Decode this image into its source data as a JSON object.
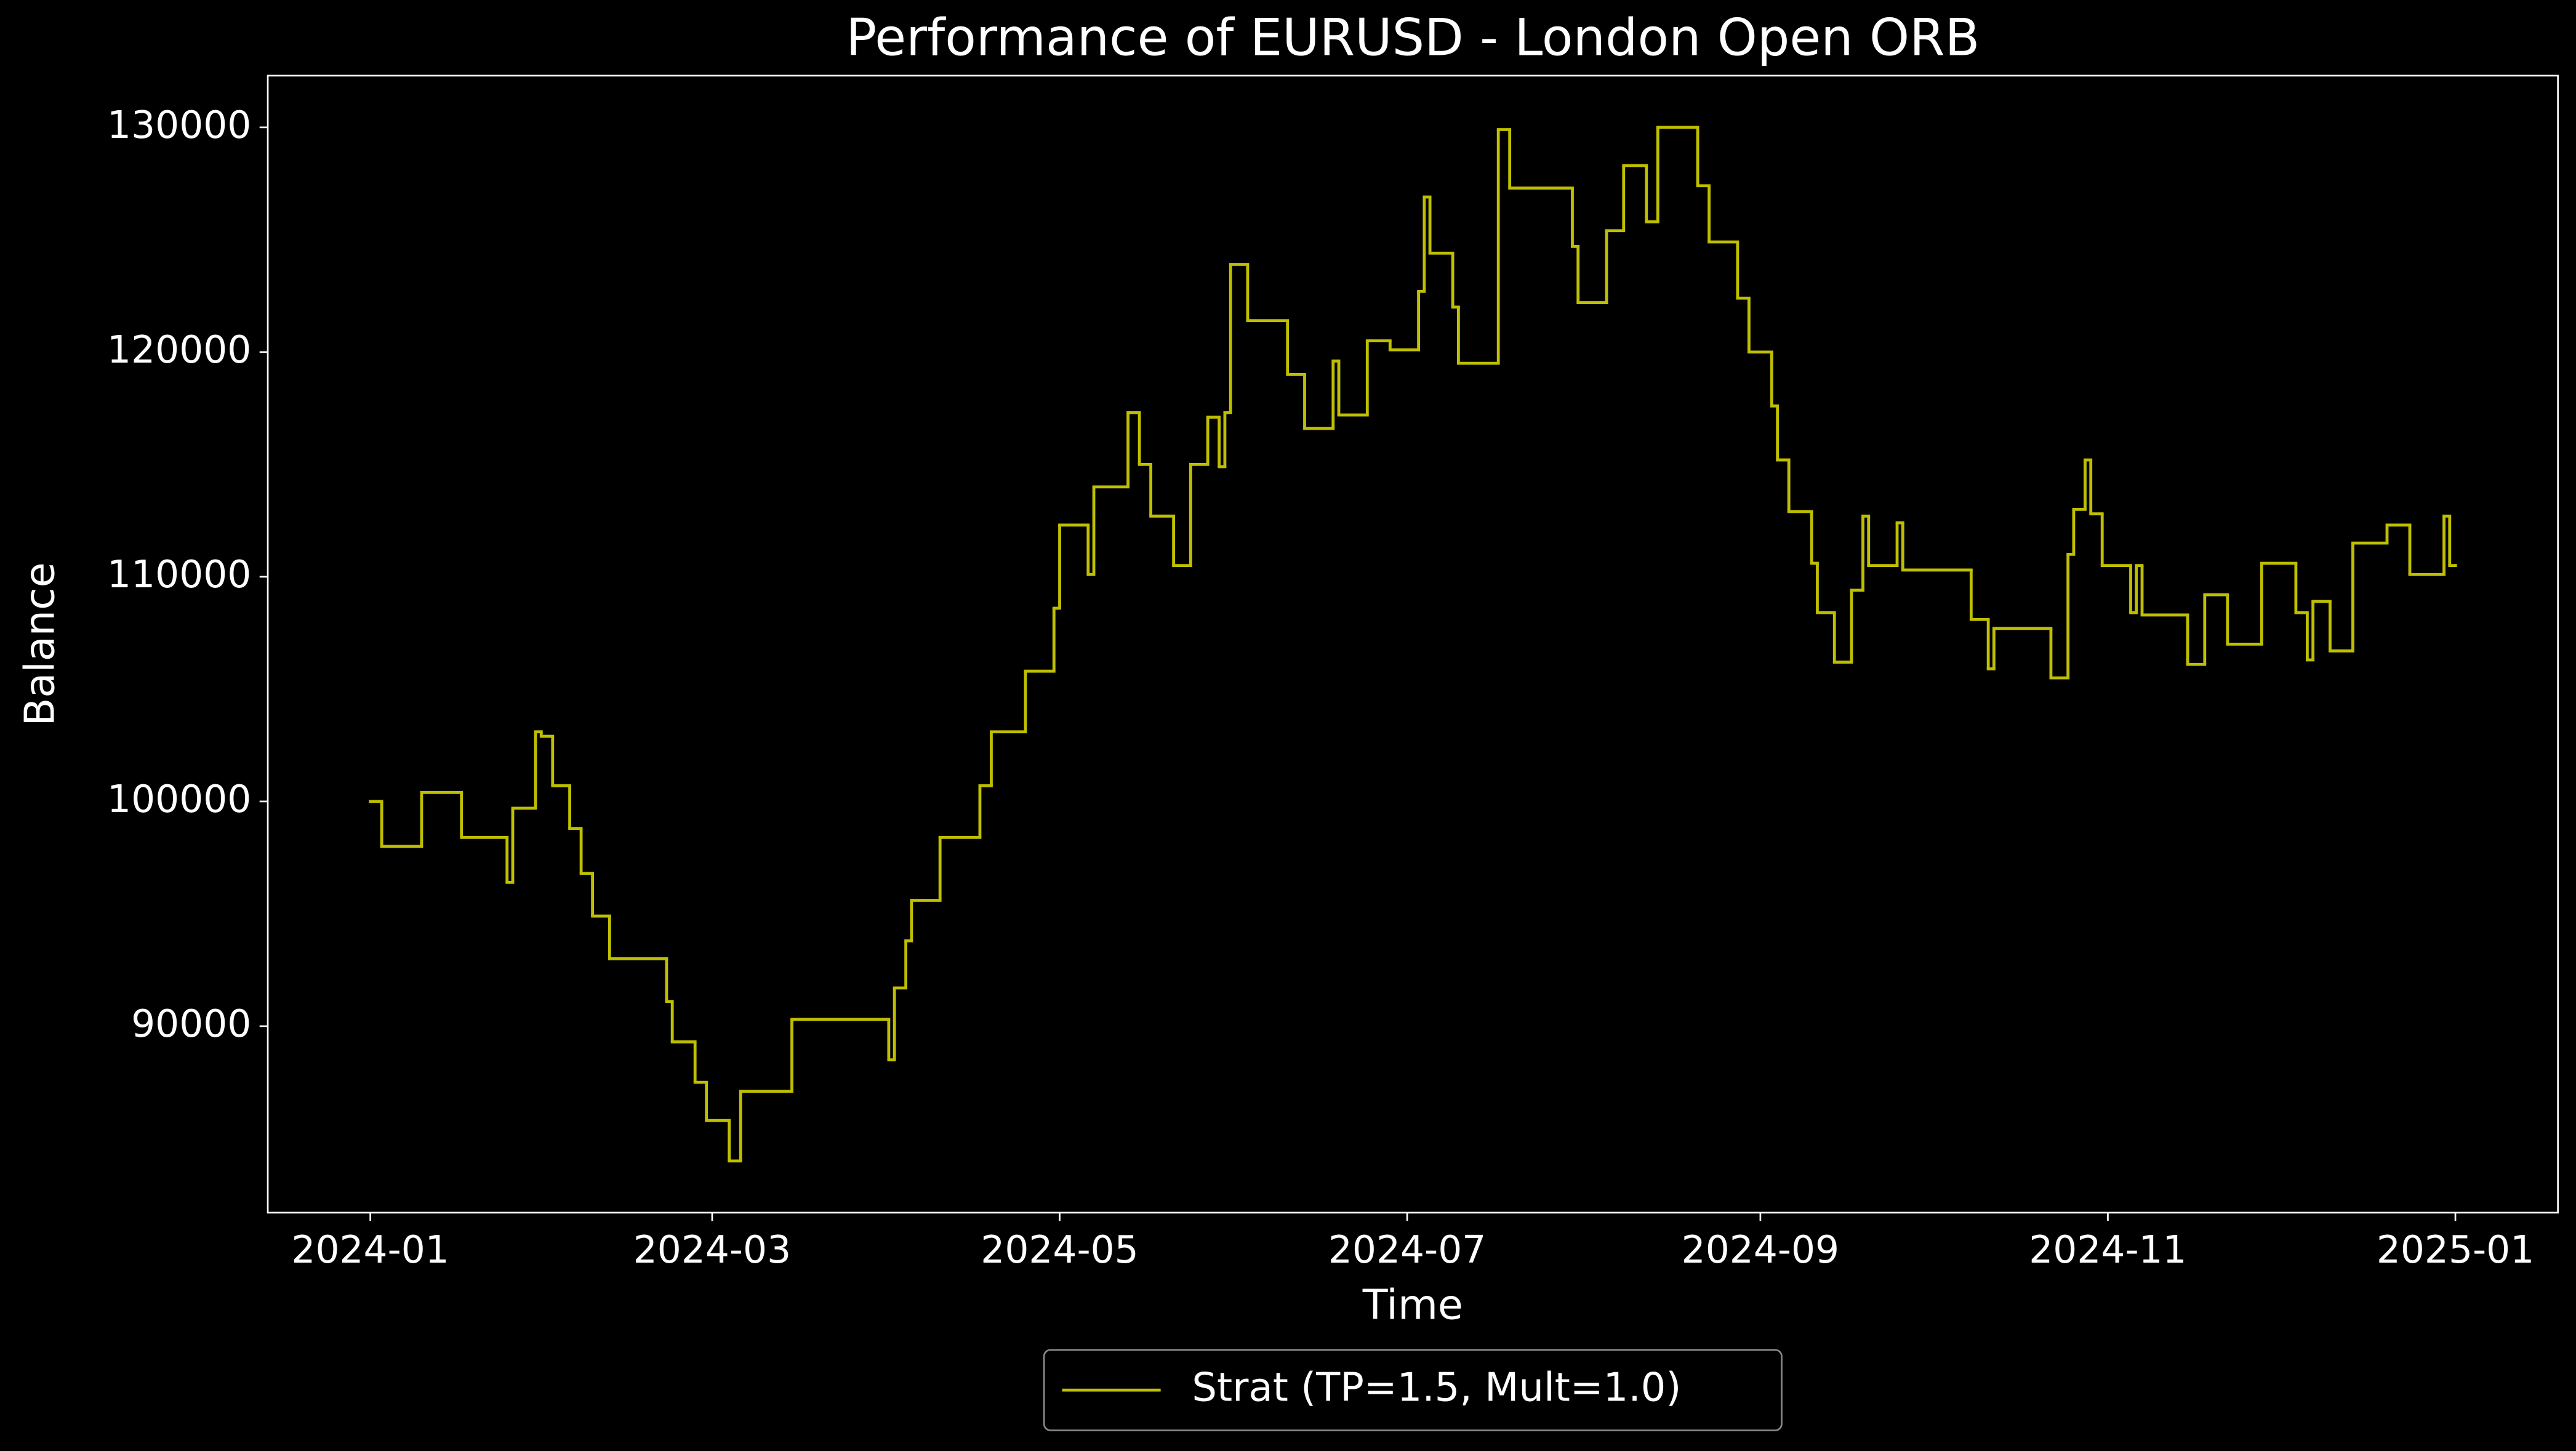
{
  "chart_data": {
    "type": "line",
    "drawstyle": "steps-post",
    "title": "Performance of EURUSD - London Open ORB",
    "x_label": "Time",
    "y_label": "Balance",
    "legend": "below",
    "xlim": [
      "2023-12-14",
      "2025-01-19"
    ],
    "xticks": [
      {
        "value": "2024-01-01",
        "label": "2024-01"
      },
      {
        "value": "2024-03-01",
        "label": "2024-03"
      },
      {
        "value": "2024-05-01",
        "label": "2024-05"
      },
      {
        "value": "2024-07-01",
        "label": "2024-07"
      },
      {
        "value": "2024-09-01",
        "label": "2024-09"
      },
      {
        "value": "2024-11-01",
        "label": "2024-11"
      },
      {
        "value": "2025-01-01",
        "label": "2025-01"
      }
    ],
    "ylim": [
      81700,
      132300
    ],
    "yticks": [
      90000,
      100000,
      110000,
      120000,
      130000
    ],
    "x": [
      "2024-01-01",
      "2024-01-03",
      "2024-01-10",
      "2024-01-17",
      "2024-01-25",
      "2024-01-26",
      "2024-01-30",
      "2024-01-31",
      "2024-02-02",
      "2024-02-05",
      "2024-02-07",
      "2024-02-09",
      "2024-02-12",
      "2024-02-22",
      "2024-02-23",
      "2024-02-27",
      "2024-02-29",
      "2024-03-04",
      "2024-03-06",
      "2024-03-15",
      "2024-04-01",
      "2024-04-02",
      "2024-04-04",
      "2024-04-05",
      "2024-04-10",
      "2024-04-17",
      "2024-04-19",
      "2024-04-25",
      "2024-04-30",
      "2024-05-01",
      "2024-05-06",
      "2024-05-07",
      "2024-05-13",
      "2024-05-15",
      "2024-05-17",
      "2024-05-21",
      "2024-05-24",
      "2024-05-27",
      "2024-05-29",
      "2024-05-30",
      "2024-05-31",
      "2024-06-03",
      "2024-06-10",
      "2024-06-13",
      "2024-06-18",
      "2024-06-19",
      "2024-06-24",
      "2024-06-28",
      "2024-07-03",
      "2024-07-04",
      "2024-07-05",
      "2024-07-09",
      "2024-07-10",
      "2024-07-17",
      "2024-07-19",
      "2024-07-30",
      "2024-07-31",
      "2024-08-05",
      "2024-08-08",
      "2024-08-12",
      "2024-08-14",
      "2024-08-21",
      "2024-08-23",
      "2024-08-28",
      "2024-08-30",
      "2024-09-03",
      "2024-09-04",
      "2024-09-06",
      "2024-09-10",
      "2024-09-11",
      "2024-09-14",
      "2024-09-17",
      "2024-09-19",
      "2024-09-20",
      "2024-09-25",
      "2024-09-26",
      "2024-10-08",
      "2024-10-11",
      "2024-10-12",
      "2024-10-22",
      "2024-10-25",
      "2024-10-26",
      "2024-10-28",
      "2024-10-29",
      "2024-10-31",
      "2024-11-05",
      "2024-11-06",
      "2024-11-07",
      "2024-11-15",
      "2024-11-18",
      "2024-11-22",
      "2024-11-28",
      "2024-12-04",
      "2024-12-06",
      "2024-12-07",
      "2024-12-10",
      "2024-12-14",
      "2024-12-20",
      "2024-12-24",
      "2024-12-30",
      "2024-12-31",
      "2025-01-01"
    ],
    "series": [
      {
        "name": "Strat (TP=1.5, Mult=1.0)",
        "color": "#bfbf00",
        "values": [
          100000,
          98000,
          100400,
          98400,
          96400,
          99700,
          103100,
          102900,
          100700,
          98800,
          96800,
          94900,
          93000,
          91100,
          89300,
          87500,
          85800,
          84000,
          87100,
          90300,
          88500,
          91700,
          93800,
          95600,
          98400,
          100700,
          103100,
          105800,
          108600,
          112300,
          110100,
          114000,
          117300,
          115000,
          112700,
          110500,
          115000,
          117100,
          114900,
          117300,
          123900,
          121400,
          119000,
          116600,
          119600,
          117200,
          120500,
          120100,
          122700,
          126900,
          124400,
          122000,
          119500,
          129900,
          127300,
          124700,
          122200,
          125400,
          128300,
          125800,
          130000,
          127400,
          124900,
          122400,
          120000,
          117600,
          115200,
          112900,
          110600,
          108400,
          106200,
          109400,
          112700,
          110500,
          112400,
          110300,
          108100,
          105900,
          107700,
          105500,
          111000,
          113000,
          115200,
          112800,
          110500,
          108400,
          110500,
          108300,
          106100,
          109200,
          107000,
          110600,
          108400,
          106300,
          108900,
          106700,
          111500,
          112300,
          110100,
          112700,
          110500,
          110500
        ]
      }
    ]
  }
}
